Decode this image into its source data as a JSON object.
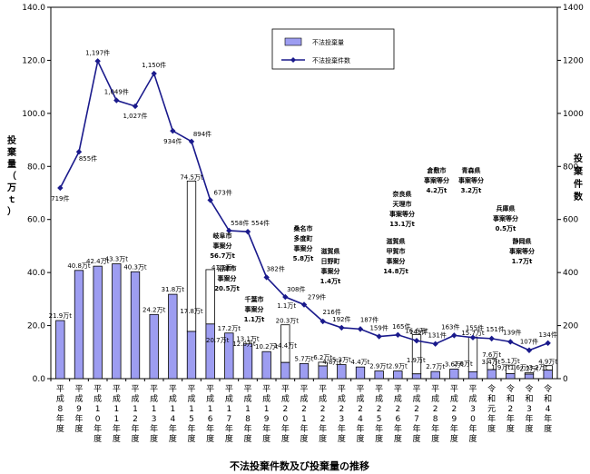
{
  "chart_data": {
    "type": "bar+line",
    "title": "不法投棄件数及び投棄量の推移",
    "ylabel_left": "投棄量（万ｔ）",
    "ylabel_right": "投棄件数",
    "ylim_left": [
      0,
      140
    ],
    "ylim_right": [
      0,
      1400
    ],
    "yticks_left": [
      "0.0",
      "20.0",
      "40.0",
      "60.0",
      "80.0",
      "100.0",
      "120.0",
      "140.0"
    ],
    "yticks_right": [
      "0",
      "200",
      "400",
      "600",
      "800",
      "1000",
      "1200",
      "1400"
    ],
    "grid": false,
    "legend": {
      "position": "top-center",
      "bar_name": "不法投棄量",
      "line_name": "不法投棄件数"
    },
    "categories": [
      "平成8年度",
      "平成9年度",
      "平成10年度",
      "平成11年度",
      "平成12年度",
      "平成13年度",
      "平成14年度",
      "平成15年度",
      "平成16年度",
      "平成17年度",
      "平成18年度",
      "平成19年度",
      "平成20年度",
      "平成21年度",
      "平成22年度",
      "平成23年度",
      "平成24年度",
      "平成25年度",
      "平成26年度",
      "平成27年度",
      "平成28年度",
      "平成29年度",
      "平成30年度",
      "令和元年度",
      "令和2年度",
      "令和3年度",
      "令和4年度"
    ],
    "bars": {
      "name": "不法投棄量",
      "total": [
        21.9,
        40.8,
        42.4,
        43.3,
        40.3,
        24.2,
        31.8,
        74.5,
        41.1,
        17.2,
        13.1,
        10.2,
        20.3,
        5.7,
        6.2,
        5.3,
        4.4,
        2.9,
        2.9,
        16.6,
        2.7,
        3.6,
        15.7,
        7.6,
        5.1,
        2.2,
        4.9
      ],
      "large_case": [
        null,
        null,
        null,
        null,
        null,
        null,
        null,
        56.7,
        20.5,
        null,
        null,
        null,
        14.2,
        null,
        1.4,
        null,
        null,
        null,
        null,
        14.8,
        null,
        null,
        13.1,
        4.2,
        3.2,
        0.5,
        1.7
      ]
    },
    "bar_labels": [
      "21.9万t",
      "40.8万t",
      "42.4万t",
      "43.3万t",
      "40.3万t",
      "24.2万t",
      "31.8万t",
      "74.5万t",
      "41.1万t",
      "17.2万t",
      "13.1万t",
      "10.2万t",
      "20.3万t",
      "5.7万t",
      "6.2万t",
      "5.3万t",
      "4.4万t",
      "2.9万t",
      "2.9万t",
      "16.6万t",
      "2.7万t",
      "3.6万t",
      "15.7万t",
      "7.6万t",
      "5.1万t",
      "2.2万t",
      "4.9万t"
    ],
    "small_labels": [
      "17.8万t",
      "20.7万t",
      "12.0万t",
      "1.1万t",
      "14.4万t",
      "4.8万t",
      "1.9万t",
      "2.6万t",
      "3.4万t",
      "1.9万t",
      "1.6万t",
      "3.2万t"
    ],
    "line": {
      "name": "不法投棄件数",
      "values": [
        719,
        855,
        1197,
        1049,
        1027,
        1150,
        934,
        894,
        673,
        558,
        554,
        382,
        308,
        279,
        216,
        192,
        187,
        159,
        165,
        143,
        131,
        163,
        155,
        151,
        139,
        107,
        134
      ],
      "labels": [
        "719件",
        "855件",
        "1,197件",
        "1,049件",
        "1,027件",
        "1,150件",
        "934件",
        "894件",
        "673件",
        "558件",
        "554件",
        "382件",
        "308件",
        "279件",
        "216件",
        "192件",
        "187件",
        "159件",
        "165件",
        "143件",
        "131件",
        "163件",
        "155件",
        "151件",
        "139件",
        "107件",
        "134件"
      ]
    },
    "annotations": [
      {
        "lines": [
          "岐阜市",
          "事案分",
          "56.7万t"
        ]
      },
      {
        "lines": [
          "沼津市",
          "事案分",
          "20.5万t"
        ]
      },
      {
        "lines": [
          "千葉市",
          "事案分",
          "1.1万t"
        ]
      },
      {
        "lines": [
          "桑名市",
          "多度町",
          "事案分",
          "5.8万t"
        ]
      },
      {
        "lines": [
          "滋賀県",
          "日野町",
          "事案分",
          "1.4万t"
        ]
      },
      {
        "lines": [
          "滋賀県",
          "甲賀市",
          "事案分",
          "14.8万t"
        ]
      },
      {
        "lines": [
          "奈良県",
          "天理市",
          "事案等分",
          "13.1万t"
        ]
      },
      {
        "lines": [
          "倉敷市",
          "事案等分",
          "4.2万t"
        ]
      },
      {
        "lines": [
          "青森県",
          "事案等分",
          "3.2万t"
        ]
      },
      {
        "lines": [
          "兵庫県",
          "事案等分",
          "0.5万t"
        ]
      },
      {
        "lines": [
          "静岡県",
          "事案等分",
          "1.7万t"
        ]
      }
    ]
  }
}
